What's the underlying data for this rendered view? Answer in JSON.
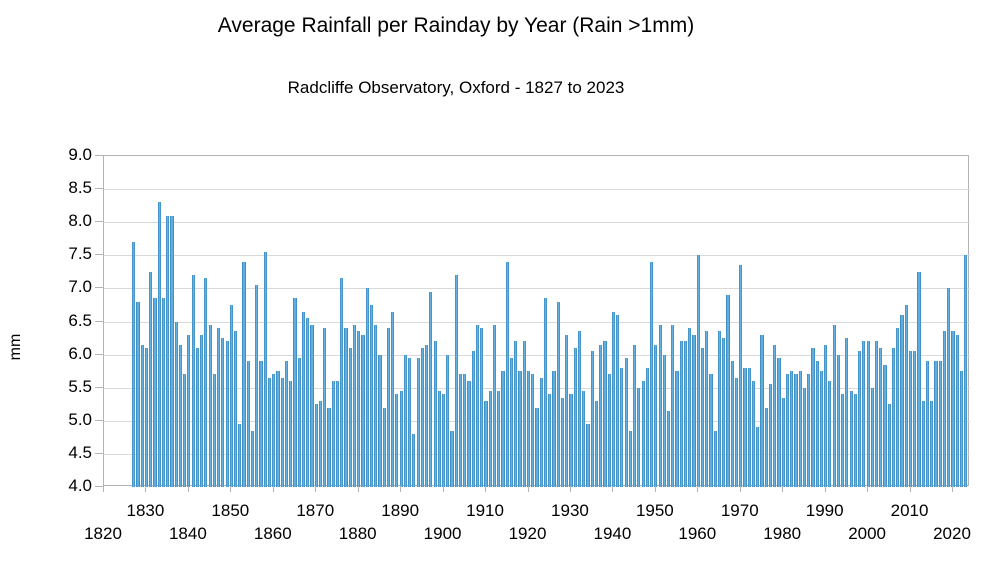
{
  "title": "Average Rainfall per Rainday by Year (Rain >1mm)",
  "subtitle": "Radcliffe Observatory, Oxford - 1827 to 2023",
  "colors": {
    "bar_fill": "#66b1e0",
    "bar_edge": "#2f80b9",
    "gridline": "#d9d9d9",
    "axis": "#b3b3b3",
    "text": "#000000",
    "background": "#ffffff"
  },
  "chart_data": {
    "type": "bar",
    "title": "Average Rainfall per Rainday by Year (Rain >1mm)",
    "subtitle": "Radcliffe Observatory, Oxford - 1827 to 2023",
    "xlabel": "",
    "ylabel": "mm",
    "ylim": [
      4.0,
      9.0
    ],
    "xlim": [
      1820,
      2024
    ],
    "grid": "horizontal",
    "legend": "none",
    "yticks": [
      "9.0",
      "8.5",
      "8.0",
      "7.5",
      "7.0",
      "6.5",
      "6.0",
      "5.5",
      "5.0",
      "4.5",
      "4.0"
    ],
    "xticks": [
      1820,
      1830,
      1840,
      1850,
      1860,
      1870,
      1880,
      1890,
      1900,
      1910,
      1920,
      1930,
      1940,
      1950,
      1960,
      1970,
      1980,
      1990,
      2000,
      2010,
      2020
    ],
    "xtick_label_rows": {
      "upper": [
        1830,
        1850,
        1870,
        1890,
        1910,
        1930,
        1950,
        1970,
        1990,
        2010
      ],
      "lower": [
        1820,
        1840,
        1860,
        1880,
        1900,
        1920,
        1940,
        1960,
        1980,
        2000,
        2020
      ]
    },
    "year_start": 1827,
    "year_end": 2023,
    "values": [
      7.7,
      6.8,
      6.15,
      6.1,
      7.25,
      6.85,
      8.3,
      6.85,
      8.1,
      8.1,
      6.5,
      6.15,
      5.7,
      6.3,
      7.2,
      6.1,
      6.3,
      7.15,
      6.45,
      5.7,
      6.4,
      6.25,
      6.2,
      6.75,
      6.35,
      4.95,
      7.4,
      5.9,
      4.85,
      7.05,
      5.9,
      7.55,
      5.65,
      5.7,
      5.75,
      5.65,
      5.9,
      5.6,
      6.85,
      5.95,
      6.65,
      6.55,
      6.45,
      5.25,
      5.3,
      6.4,
      5.2,
      5.6,
      5.6,
      7.15,
      6.4,
      6.1,
      6.45,
      6.35,
      6.3,
      7.0,
      6.75,
      6.45,
      6.0,
      5.2,
      6.4,
      6.65,
      5.4,
      5.45,
      6.0,
      5.95,
      4.8,
      5.95,
      6.1,
      6.15,
      6.95,
      6.2,
      5.45,
      5.4,
      6.0,
      4.85,
      7.2,
      5.7,
      5.7,
      5.6,
      6.05,
      6.45,
      6.4,
      5.3,
      5.45,
      6.45,
      5.45,
      5.75,
      7.4,
      5.95,
      6.2,
      5.75,
      6.2,
      5.75,
      5.7,
      5.2,
      5.65,
      6.85,
      5.4,
      5.75,
      6.8,
      5.35,
      6.3,
      5.4,
      6.1,
      6.35,
      5.45,
      4.95,
      6.05,
      5.3,
      6.15,
      6.2,
      5.7,
      6.65,
      6.6,
      5.8,
      5.95,
      4.85,
      6.15,
      5.5,
      5.6,
      5.8,
      7.4,
      6.15,
      6.45,
      6.0,
      5.15,
      6.45,
      5.75,
      6.2,
      6.2,
      6.4,
      6.3,
      7.5,
      6.1,
      6.35,
      5.7,
      4.85,
      6.35,
      6.25,
      6.9,
      5.9,
      5.65,
      7.35,
      5.8,
      5.8,
      5.6,
      4.9,
      6.3,
      5.2,
      5.55,
      6.15,
      5.95,
      5.35,
      5.7,
      5.75,
      5.7,
      5.75,
      5.5,
      5.7,
      6.1,
      5.9,
      5.75,
      6.15,
      5.6,
      6.45,
      6.0,
      5.4,
      6.25,
      5.45,
      5.4,
      6.05,
      6.2,
      6.2,
      5.5,
      6.2,
      6.1,
      5.85,
      5.25,
      6.1,
      6.4,
      6.6,
      6.75,
      6.05,
      6.05,
      7.25,
      5.3,
      5.9,
      5.3,
      5.9,
      5.9,
      6.35,
      7.0,
      6.35,
      6.3,
      5.75,
      7.5
    ]
  }
}
